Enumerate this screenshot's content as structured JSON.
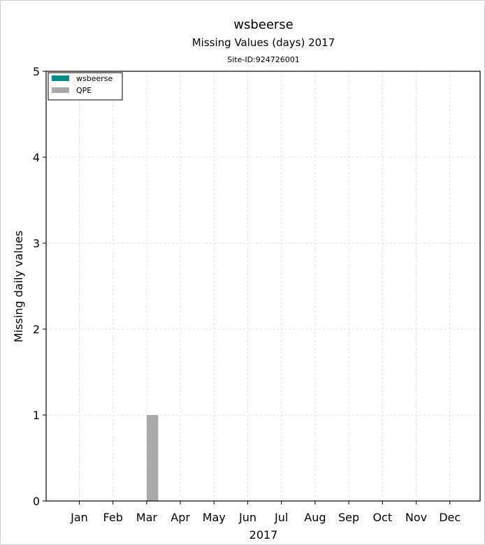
{
  "chart_data": {
    "type": "bar",
    "title": "wsbeerse",
    "subtitle": "Missing Values (days) 2017",
    "site_label": "Site-ID:924726001",
    "xlabel": "2017",
    "ylabel": "Missing daily values",
    "categories": [
      "Jan",
      "Feb",
      "Mar",
      "Apr",
      "May",
      "Jun",
      "Jul",
      "Aug",
      "Sep",
      "Oct",
      "Nov",
      "Dec"
    ],
    "ylim": [
      0,
      5
    ],
    "yticks": [
      "0",
      "1",
      "2",
      "3",
      "4",
      "5"
    ],
    "grid": true,
    "legend_position": "top-left",
    "series": [
      {
        "name": "wsbeerse",
        "color": "#008b8b",
        "values": [
          0,
          0,
          0,
          0,
          0,
          0,
          0,
          0,
          0,
          0,
          0,
          0
        ]
      },
      {
        "name": "QPE",
        "color": "#aaaaaa",
        "values": [
          0,
          0,
          1,
          0,
          0,
          0,
          0,
          0,
          0,
          0,
          0,
          0
        ]
      }
    ]
  }
}
